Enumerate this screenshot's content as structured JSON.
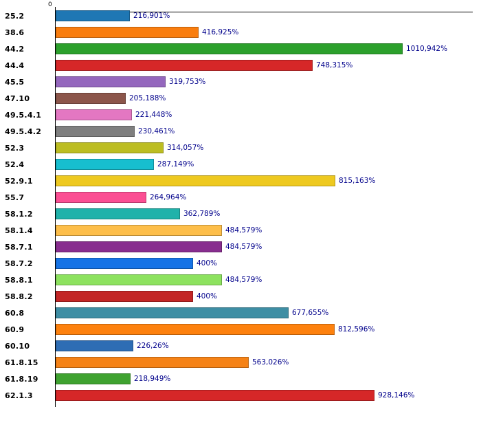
{
  "axis": {
    "zero_label": "0"
  },
  "chart_data": {
    "type": "bar",
    "orientation": "horizontal",
    "title": "",
    "xlabel": "",
    "ylabel": "",
    "unit": "%",
    "x_axis": {
      "ticks": [
        "0"
      ],
      "min": 0
    },
    "legend": null,
    "grid": false,
    "categories": [
      "25.2",
      "38.6",
      "44.2",
      "44.4",
      "45.5",
      "47.10",
      "49.5.4.1",
      "49.5.4.2",
      "52.3",
      "52.4",
      "52.9.1",
      "55.7",
      "58.1.2",
      "58.1.4",
      "58.7.1",
      "58.7.2",
      "58.8.1",
      "58.8.2",
      "60.8",
      "60.9",
      "60.10",
      "61.8.15",
      "61.8.19",
      "62.1.3"
    ],
    "values": [
      216.901,
      416.925,
      1010.942,
      748.315,
      319.753,
      205.188,
      221.448,
      230.461,
      314.057,
      287.149,
      815.163,
      264.964,
      362.789,
      484.579,
      484.579,
      400,
      484.579,
      400,
      677.655,
      812.596,
      226.26,
      563.026,
      218.949,
      928.146
    ],
    "value_labels": [
      "216,901%",
      "416,925%",
      "1010,942%",
      "748,315%",
      "319,753%",
      "205,188%",
      "221,448%",
      "230,461%",
      "314,057%",
      "287,149%",
      "815,163%",
      "264,964%",
      "362,789%",
      "484,579%",
      "484,579%",
      "400%",
      "484,579%",
      "400%",
      "677,655%",
      "812,596%",
      "226,26%",
      "563,026%",
      "218,949%",
      "928,146%"
    ],
    "colors": [
      "#1f77b4",
      "#f97d0e",
      "#2ca02c",
      "#d62728",
      "#9467bd",
      "#8c564b",
      "#e377c2",
      "#7f7f7f",
      "#bcbd22",
      "#17becf",
      "#eec920",
      "#fb4f93",
      "#20b2aa",
      "#fdbe4a",
      "#882d8f",
      "#1673e6",
      "#8de25f",
      "#c32626",
      "#3e8ea4",
      "#fd810e",
      "#2e6db4",
      "#f58216",
      "#3fa230",
      "#d62728"
    ]
  }
}
